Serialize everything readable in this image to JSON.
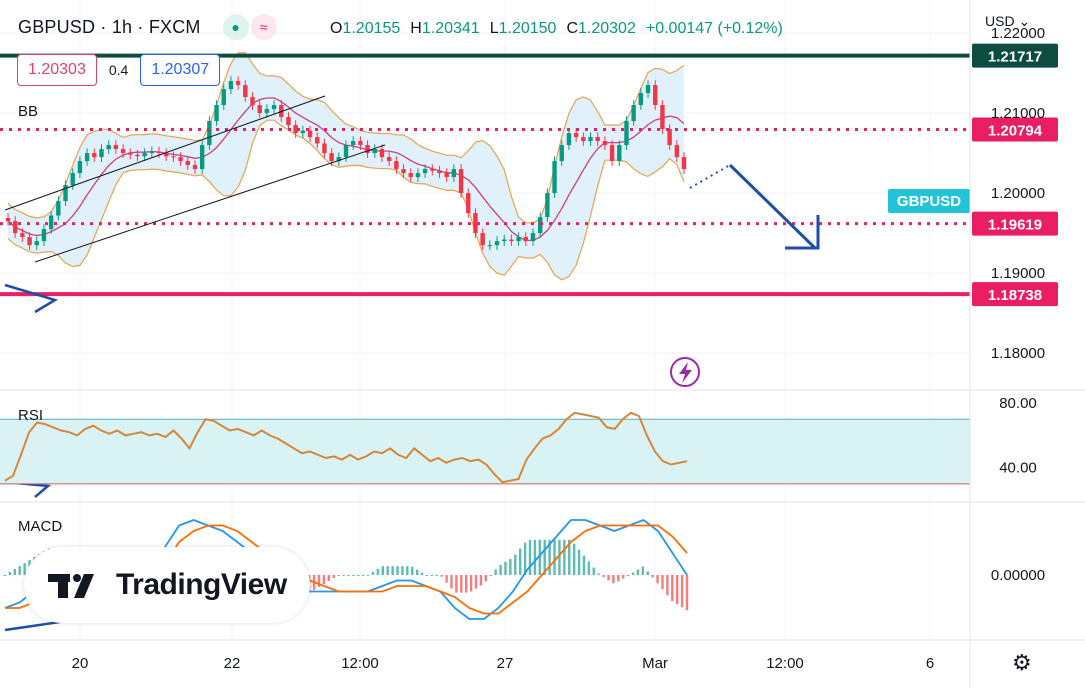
{
  "header": {
    "symbol": "GBPUSD · 1h · FXCM",
    "open_label": "O",
    "open": "1.20155",
    "high_label": "H",
    "high": "1.20341",
    "low_label": "L",
    "low": "1.20150",
    "close_label": "C",
    "close": "1.20302",
    "change": "+0.00147 (+0.12%)",
    "sell_price": "1.20303",
    "spread": "0.4",
    "buy_price": "1.20307",
    "currency": "USD"
  },
  "colors": {
    "up": "#089981",
    "down": "#f23645",
    "bb_band": "#e6a34f",
    "bb_basis": "#cf3c82",
    "bb_fill": "#dbeefb",
    "rsi_line": "#d4873a",
    "rsi_fill": "#d9f3f4",
    "macd_line": "#2196f3",
    "signal_line": "#ff6d00",
    "magenta": "#e91e63",
    "darkgreen": "#0d4d3f"
  },
  "icons": {
    "settings": "gear-icon",
    "lightning": "lightning-icon",
    "logo": "tradingview-logo"
  },
  "logo_text": "TradingView",
  "chart_data": {
    "type": "candlestick",
    "price_axis": {
      "labels": [
        "1.22000",
        "1.21000",
        "1.20000",
        "1.19000",
        "1.18000"
      ],
      "range": [
        1.1754,
        1.2235
      ]
    },
    "time_axis": {
      "labels": [
        "20",
        "22",
        "12:00",
        "27",
        "Mar",
        "12:00",
        "6"
      ]
    },
    "levels": [
      {
        "value": 1.21717,
        "label": "1.21717",
        "color": "#0d4d3f",
        "style": "solid"
      },
      {
        "value": 1.20794,
        "label": "1.20794",
        "color": "#e91e63",
        "style": "dotted"
      },
      {
        "value": 1.19619,
        "label": "1.19619",
        "color": "#e91e63",
        "style": "dotted"
      },
      {
        "value": 1.18738,
        "label": "1.18738",
        "color": "#e91e63",
        "style": "solid"
      }
    ],
    "symbol_tag": "GBPUSD",
    "indicators": {
      "bb": {
        "label": "BB"
      },
      "rsi": {
        "label": "RSI",
        "ticks": [
          "80.00",
          "40.00"
        ],
        "band": [
          70,
          30
        ]
      },
      "macd": {
        "label": "MACD",
        "ticks": [
          "0.00000"
        ]
      }
    },
    "close_series": [
      1.1965,
      1.195,
      1.1945,
      1.1935,
      1.194,
      1.1955,
      1.1972,
      1.199,
      1.201,
      1.2025,
      1.204,
      1.205,
      1.2045,
      1.2055,
      1.206,
      1.2055,
      1.205,
      1.2048,
      1.2046,
      1.205,
      1.2052,
      1.205,
      1.2046,
      1.2045,
      1.204,
      1.2035,
      1.203,
      1.206,
      1.209,
      1.211,
      1.213,
      1.214,
      1.2135,
      1.212,
      1.211,
      1.21,
      1.2105,
      1.211,
      1.2095,
      1.2085,
      1.2075,
      1.2078,
      1.207,
      1.2062,
      1.205,
      1.204,
      1.2045,
      1.206,
      1.2065,
      1.206,
      1.205,
      1.2055,
      1.2045,
      1.204,
      1.203,
      1.2025,
      1.202,
      1.2025,
      1.203,
      1.2028,
      1.2025,
      1.202,
      1.203,
      1.2,
      1.1975,
      1.195,
      1.1935,
      1.1935,
      1.194,
      1.1942,
      1.194,
      1.1945,
      1.194,
      1.195,
      1.197,
      1.2,
      1.204,
      1.206,
      1.2075,
      1.207,
      1.2065,
      1.207,
      1.2065,
      1.206,
      1.204,
      1.206,
      1.209,
      1.211,
      1.2125,
      1.2135,
      1.211,
      1.208,
      1.206,
      1.2045,
      1.203
    ],
    "rsi_series": [
      32,
      35,
      48,
      62,
      68,
      67,
      65,
      63,
      62,
      60,
      64,
      66,
      63,
      61,
      63,
      60,
      61,
      62,
      60,
      61,
      59,
      63,
      58,
      52,
      62,
      70,
      69,
      66,
      63,
      64,
      62,
      60,
      63,
      60,
      58,
      55,
      52,
      49,
      50,
      48,
      46,
      47,
      45,
      48,
      45,
      47,
      50,
      49,
      52,
      48,
      46,
      52,
      48,
      44,
      46,
      43,
      45,
      46,
      44,
      45,
      42,
      36,
      31,
      32,
      33,
      45,
      52,
      58,
      60,
      64,
      70,
      74,
      73,
      72,
      71,
      65,
      64,
      70,
      74,
      72,
      60,
      50,
      44,
      42,
      43,
      44
    ],
    "macd_series": [
      -0.0006,
      -0.0005,
      -0.0003,
      0.0,
      0.0002,
      0.0002,
      0.0001,
      0.0,
      0.0,
      -0.0001,
      -0.0001,
      0.0005,
      0.0009,
      0.001,
      0.0009,
      0.0008,
      0.0006,
      0.0004,
      0.0002,
      0.0,
      -0.0002,
      -0.0003,
      -0.0003,
      -0.0003,
      -0.0003,
      -0.0003,
      -0.0002,
      -0.0001,
      -0.0001,
      -0.0002,
      -0.0003,
      -0.0006,
      -0.0008,
      -0.0008,
      -0.0006,
      -0.0003,
      0.0001,
      0.0004,
      0.0007,
      0.001,
      0.001,
      0.0009,
      0.0008,
      0.0009,
      0.001,
      0.0008,
      0.0004,
      0.0
    ],
    "signal_series": [
      -0.0006,
      -0.0006,
      -0.0005,
      -0.0003,
      -0.0001,
      0.0,
      0.0001,
      0.0001,
      0.0,
      0.0,
      -0.0001,
      0.0002,
      0.0006,
      0.0008,
      0.0009,
      0.0009,
      0.0008,
      0.0006,
      0.0004,
      0.0002,
      0.0,
      -0.0001,
      -0.0002,
      -0.0003,
      -0.0003,
      -0.0003,
      -0.0003,
      -0.0002,
      -0.0002,
      -0.0002,
      -0.0003,
      -0.0004,
      -0.0006,
      -0.0007,
      -0.0007,
      -0.0005,
      -0.0003,
      0.0,
      0.0003,
      0.0006,
      0.0008,
      0.0009,
      0.0009,
      0.0009,
      0.0009,
      0.0009,
      0.0007,
      0.0004
    ]
  }
}
